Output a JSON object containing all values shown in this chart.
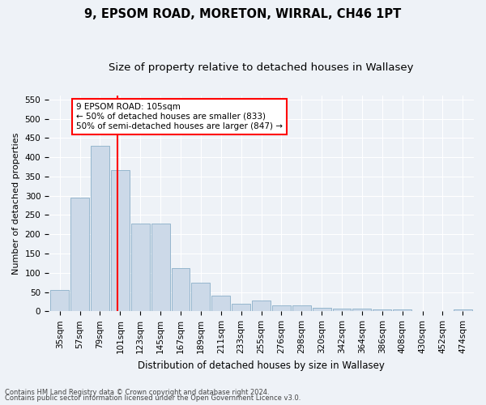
{
  "title1": "9, EPSOM ROAD, MORETON, WIRRAL, CH46 1PT",
  "title2": "Size of property relative to detached houses in Wallasey",
  "xlabel": "Distribution of detached houses by size in Wallasey",
  "ylabel": "Number of detached properties",
  "bar_color": "#ccd9e8",
  "bar_edge_color": "#8aafc8",
  "categories": [
    "35sqm",
    "57sqm",
    "79sqm",
    "101sqm",
    "123sqm",
    "145sqm",
    "167sqm",
    "189sqm",
    "211sqm",
    "233sqm",
    "255sqm",
    "276sqm",
    "298sqm",
    "320sqm",
    "342sqm",
    "364sqm",
    "386sqm",
    "408sqm",
    "430sqm",
    "452sqm",
    "474sqm"
  ],
  "values": [
    55,
    295,
    430,
    367,
    227,
    227,
    113,
    75,
    40,
    20,
    27,
    16,
    15,
    10,
    8,
    8,
    5,
    4,
    0,
    0,
    4
  ],
  "ylim": [
    0,
    560
  ],
  "yticks": [
    0,
    50,
    100,
    150,
    200,
    250,
    300,
    350,
    400,
    450,
    500,
    550
  ],
  "vline_x_index": 2.85,
  "annotation_text": "9 EPSOM ROAD: 105sqm\n← 50% of detached houses are smaller (833)\n50% of semi-detached houses are larger (847) →",
  "footer1": "Contains HM Land Registry data © Crown copyright and database right 2024.",
  "footer2": "Contains public sector information licensed under the Open Government Licence v3.0.",
  "background_color": "#eef2f7",
  "grid_color": "#ffffff",
  "title_fontsize": 10.5,
  "subtitle_fontsize": 9.5,
  "axis_label_fontsize": 8,
  "tick_fontsize": 7.5
}
